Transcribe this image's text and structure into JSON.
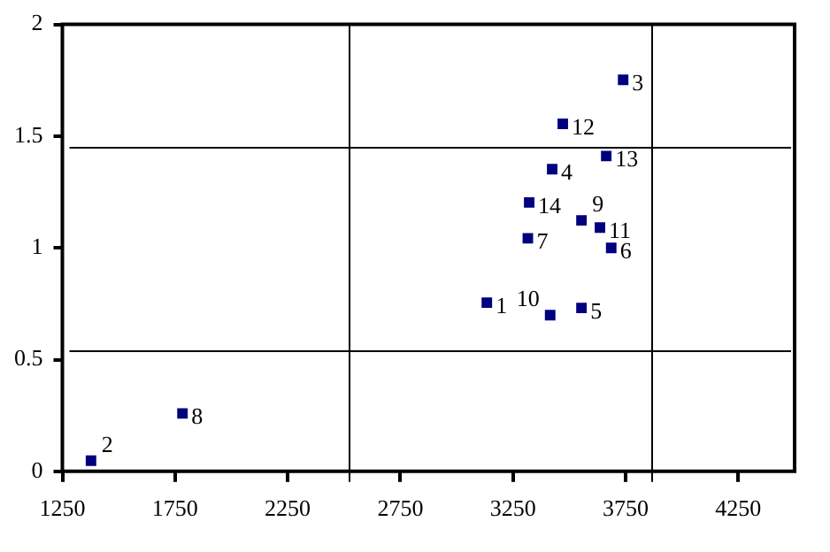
{
  "chart_data": {
    "type": "scatter",
    "x": [
      3134,
      1377,
      3739,
      3424,
      3554,
      3686,
      3316,
      1783,
      3554,
      3415,
      3636,
      3471,
      3664,
      3322
    ],
    "values": [
      0.755,
      0.048,
      1.752,
      1.352,
      0.731,
      1.0,
      1.043,
      0.259,
      1.123,
      0.699,
      1.091,
      1.555,
      1.411,
      1.203
    ],
    "color": "#000080",
    "marker": "square",
    "xlim": [
      1250,
      4500
    ],
    "xticks": [
      1250,
      1750,
      2250,
      2750,
      3250,
      3750,
      4250
    ],
    "ylim": [
      0,
      2
    ],
    "yticks": [
      0,
      0.5,
      1,
      1.5,
      2
    ],
    "grid": false,
    "legend": false,
    "ref_lines": [
      {
        "axis": "x",
        "value": 2524,
        "color": "#000000"
      },
      {
        "axis": "x",
        "value": 3860,
        "color": "#000000"
      },
      {
        "axis": "y",
        "value": 1.453,
        "color": "#000000"
      },
      {
        "axis": "y",
        "value": 0.541,
        "color": "#000000"
      }
    ],
    "annotations": [
      {
        "text": "1",
        "x": 3134,
        "y": 0.755
      },
      {
        "text": "2",
        "x": 1377,
        "y": 0.048
      },
      {
        "text": "3",
        "x": 3739,
        "y": 1.752
      },
      {
        "text": "4",
        "x": 3424,
        "y": 1.352
      },
      {
        "text": "5",
        "x": 3554,
        "y": 0.731
      },
      {
        "text": "6",
        "x": 3686,
        "y": 1.0
      },
      {
        "text": "7",
        "x": 3316,
        "y": 1.043
      },
      {
        "text": "8",
        "x": 1783,
        "y": 0.259
      },
      {
        "text": "9",
        "x": 3554,
        "y": 1.123
      },
      {
        "text": "10",
        "x": 3415,
        "y": 0.699
      },
      {
        "text": "11",
        "x": 3636,
        "y": 1.091
      },
      {
        "text": "12",
        "x": 3471,
        "y": 1.555
      },
      {
        "text": "13",
        "x": 3664,
        "y": 1.411
      },
      {
        "text": "14",
        "x": 3322,
        "y": 1.203
      }
    ]
  }
}
